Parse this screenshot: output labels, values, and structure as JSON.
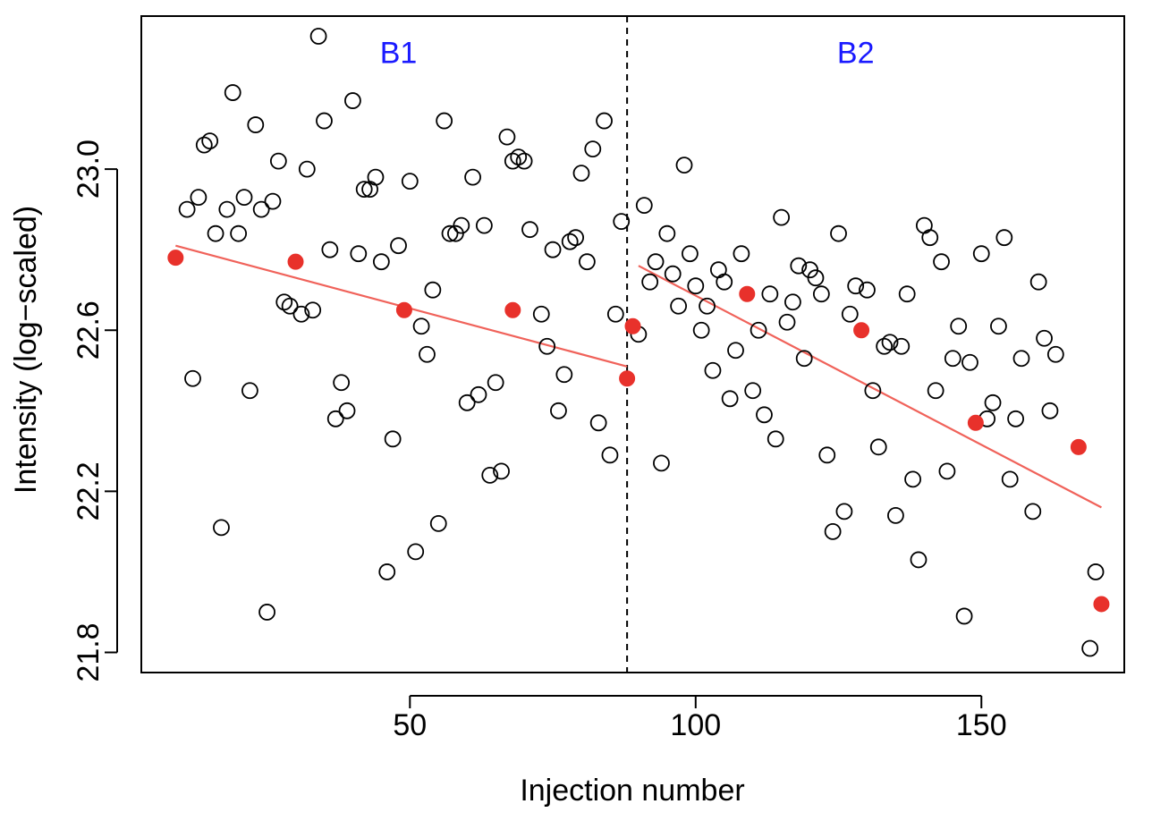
{
  "chart_data": {
    "type": "scatter",
    "title": "",
    "xlabel": "Injection number",
    "ylabel": "Intensity (log−scaled)",
    "xlim": [
      3,
      175
    ],
    "ylim": [
      21.75,
      23.38
    ],
    "x_ticks": [
      50,
      100,
      150
    ],
    "y_ticks": [
      21.8,
      22.2,
      22.6,
      23.0
    ],
    "x_tick_labels": [
      "50",
      "100",
      "150"
    ],
    "y_tick_labels": [
      "21.8",
      "22.2",
      "22.6",
      "23.0"
    ],
    "batch_boundary": 88,
    "batch_labels": [
      {
        "text": "B1",
        "x": 48,
        "y": 23.29
      },
      {
        "text": "B2",
        "x": 128,
        "y": 23.29
      }
    ],
    "colors": {
      "samples": "#000000",
      "qc": "#e8312b",
      "trend": "#f0625a",
      "batch_label": "#1a1aff"
    },
    "series": [
      {
        "name": "Samples",
        "marker": "open-circle",
        "points": [
          [
            11,
            22.9
          ],
          [
            12,
            22.48
          ],
          [
            13,
            22.93
          ],
          [
            14,
            23.06
          ],
          [
            15,
            23.07
          ],
          [
            16,
            22.84
          ],
          [
            17,
            22.11
          ],
          [
            18,
            22.9
          ],
          [
            19,
            23.19
          ],
          [
            20,
            22.84
          ],
          [
            21,
            22.93
          ],
          [
            22,
            22.45
          ],
          [
            23,
            23.11
          ],
          [
            24,
            22.9
          ],
          [
            25,
            21.9
          ],
          [
            26,
            22.92
          ],
          [
            27,
            23.02
          ],
          [
            28,
            22.67
          ],
          [
            29,
            22.66
          ],
          [
            31,
            22.64
          ],
          [
            32,
            23.0
          ],
          [
            33,
            22.65
          ],
          [
            34,
            23.33
          ],
          [
            35,
            23.12
          ],
          [
            36,
            22.8
          ],
          [
            37,
            22.38
          ],
          [
            38,
            22.47
          ],
          [
            39,
            22.4
          ],
          [
            40,
            23.17
          ],
          [
            41,
            22.79
          ],
          [
            42,
            22.95
          ],
          [
            43,
            22.95
          ],
          [
            44,
            22.98
          ],
          [
            45,
            22.77
          ],
          [
            46,
            22.0
          ],
          [
            47,
            22.33
          ],
          [
            48,
            22.81
          ],
          [
            50,
            22.97
          ],
          [
            51,
            22.05
          ],
          [
            52,
            22.61
          ],
          [
            53,
            22.54
          ],
          [
            54,
            22.7
          ],
          [
            55,
            22.12
          ],
          [
            56,
            23.12
          ],
          [
            57,
            22.84
          ],
          [
            58,
            22.84
          ],
          [
            59,
            22.86
          ],
          [
            60,
            22.42
          ],
          [
            61,
            22.98
          ],
          [
            62,
            22.44
          ],
          [
            63,
            22.86
          ],
          [
            64,
            22.24
          ],
          [
            65,
            22.47
          ],
          [
            66,
            22.25
          ],
          [
            67,
            23.08
          ],
          [
            68,
            23.02
          ],
          [
            69,
            23.03
          ],
          [
            70,
            23.02
          ],
          [
            71,
            22.85
          ],
          [
            73,
            22.64
          ],
          [
            74,
            22.56
          ],
          [
            75,
            22.8
          ],
          [
            76,
            22.4
          ],
          [
            77,
            22.49
          ],
          [
            78,
            22.82
          ],
          [
            79,
            22.83
          ],
          [
            80,
            22.99
          ],
          [
            81,
            22.77
          ],
          [
            82,
            23.05
          ],
          [
            83,
            22.37
          ],
          [
            84,
            23.12
          ],
          [
            85,
            22.29
          ],
          [
            86,
            22.64
          ],
          [
            87,
            22.87
          ],
          [
            90,
            22.59
          ],
          [
            91,
            22.91
          ],
          [
            92,
            22.72
          ],
          [
            93,
            22.77
          ],
          [
            94,
            22.27
          ],
          [
            95,
            22.84
          ],
          [
            96,
            22.74
          ],
          [
            97,
            22.66
          ],
          [
            98,
            23.01
          ],
          [
            99,
            22.79
          ],
          [
            100,
            22.71
          ],
          [
            101,
            22.6
          ],
          [
            102,
            22.66
          ],
          [
            103,
            22.5
          ],
          [
            104,
            22.75
          ],
          [
            105,
            22.72
          ],
          [
            106,
            22.43
          ],
          [
            107,
            22.55
          ],
          [
            108,
            22.79
          ],
          [
            110,
            22.45
          ],
          [
            111,
            22.6
          ],
          [
            112,
            22.39
          ],
          [
            113,
            22.69
          ],
          [
            114,
            22.33
          ],
          [
            115,
            22.88
          ],
          [
            116,
            22.62
          ],
          [
            117,
            22.67
          ],
          [
            118,
            22.76
          ],
          [
            119,
            22.53
          ],
          [
            120,
            22.75
          ],
          [
            121,
            22.73
          ],
          [
            122,
            22.69
          ],
          [
            123,
            22.29
          ],
          [
            124,
            22.1
          ],
          [
            125,
            22.84
          ],
          [
            126,
            22.15
          ],
          [
            127,
            22.64
          ],
          [
            128,
            22.71
          ],
          [
            130,
            22.7
          ],
          [
            131,
            22.45
          ],
          [
            132,
            22.31
          ],
          [
            133,
            22.56
          ],
          [
            134,
            22.57
          ],
          [
            135,
            22.14
          ],
          [
            136,
            22.56
          ],
          [
            137,
            22.69
          ],
          [
            138,
            22.23
          ],
          [
            139,
            22.03
          ],
          [
            140,
            22.86
          ],
          [
            141,
            22.83
          ],
          [
            142,
            22.45
          ],
          [
            143,
            22.77
          ],
          [
            144,
            22.25
          ],
          [
            145,
            22.53
          ],
          [
            146,
            22.61
          ],
          [
            147,
            21.89
          ],
          [
            148,
            22.52
          ],
          [
            150,
            22.79
          ],
          [
            151,
            22.38
          ],
          [
            152,
            22.42
          ],
          [
            153,
            22.61
          ],
          [
            154,
            22.83
          ],
          [
            155,
            22.23
          ],
          [
            156,
            22.38
          ],
          [
            157,
            22.53
          ],
          [
            159,
            22.15
          ],
          [
            160,
            22.72
          ],
          [
            161,
            22.58
          ],
          [
            162,
            22.4
          ],
          [
            163,
            22.54
          ],
          [
            169,
            21.81
          ],
          [
            170,
            22.0
          ]
        ]
      },
      {
        "name": "QC",
        "marker": "filled-circle",
        "points": [
          [
            9,
            22.78
          ],
          [
            30,
            22.77
          ],
          [
            49,
            22.65
          ],
          [
            68,
            22.65
          ],
          [
            88,
            22.48
          ],
          [
            89,
            22.61
          ],
          [
            109,
            22.69
          ],
          [
            129,
            22.6
          ],
          [
            149,
            22.37
          ],
          [
            167,
            22.31
          ],
          [
            171,
            21.92
          ]
        ]
      }
    ],
    "trend_lines": [
      {
        "name": "B1 trend",
        "x": [
          9,
          88
        ],
        "y": [
          22.81,
          22.51
        ]
      },
      {
        "name": "B2 trend",
        "x": [
          90,
          171
        ],
        "y": [
          22.76,
          22.16
        ]
      }
    ]
  }
}
